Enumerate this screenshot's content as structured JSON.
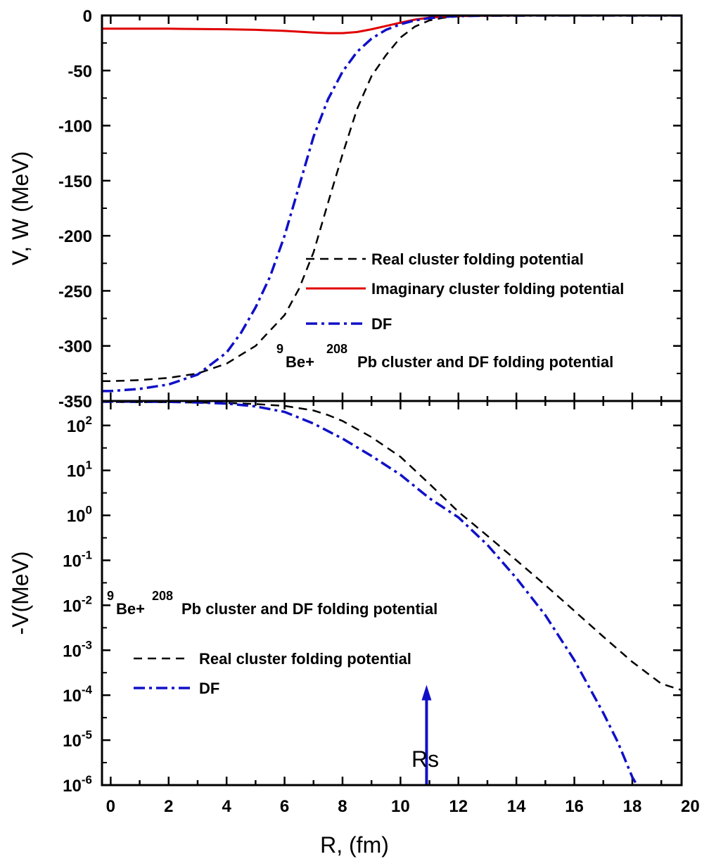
{
  "chart_data": [
    {
      "type": "line",
      "panel": "top",
      "ylabel": "V, W (MeV)",
      "xlim": [
        -0.3,
        19.7
      ],
      "ylim": [
        -350,
        0
      ],
      "yticks": [
        0,
        -50,
        -100,
        -150,
        -200,
        -250,
        -300,
        -350
      ],
      "ytick_labels": [
        "0",
        "-50",
        "-100",
        "-150",
        "-200",
        "-250",
        "-300",
        "-350"
      ],
      "annotation": {
        "pre": "Be+",
        "sup1": "9",
        "sup2": "208",
        "post": "Pb cluster and DF folding potential"
      },
      "series": [
        {
          "name": "Real cluster folding potential",
          "color": "#000000",
          "style": "dash",
          "x": [
            -0.3,
            0,
            1,
            2,
            3,
            4,
            5,
            6,
            6.5,
            7,
            7.5,
            8,
            8.5,
            9,
            9.5,
            10,
            10.5,
            11,
            11.5,
            12,
            13,
            14,
            15,
            17,
            19.7
          ],
          "y": [
            -332,
            -332,
            -331,
            -329,
            -325,
            -316,
            -300,
            -272,
            -248,
            -215,
            -170,
            -126,
            -85,
            -55,
            -36,
            -20,
            -10,
            -4.5,
            -2,
            -0.8,
            -0.2,
            -0.05,
            0,
            0,
            0
          ]
        },
        {
          "name": "Imaginary cluster folding potential",
          "color": "#e00000",
          "style": "solid",
          "x": [
            -0.3,
            0,
            2,
            4,
            5,
            6,
            7,
            7.5,
            8,
            8.5,
            9,
            9.5,
            10,
            10.5,
            11,
            11.5,
            12,
            13,
            15,
            19.7
          ],
          "y": [
            -12,
            -12,
            -12,
            -12.5,
            -13,
            -14,
            -15.5,
            -16,
            -16,
            -15,
            -12.5,
            -9.5,
            -6.5,
            -3.8,
            -2,
            -0.9,
            -0.4,
            -0.1,
            0,
            0
          ]
        },
        {
          "name": "DF",
          "color": "#1010c8",
          "style": "dashdot",
          "x": [
            -0.3,
            0,
            1,
            2,
            3,
            4,
            4.5,
            5,
            5.5,
            6,
            6.5,
            7,
            7.5,
            8,
            8.5,
            9,
            9.5,
            10,
            10.5,
            11,
            11.5,
            12,
            13,
            14,
            15,
            19.7
          ],
          "y": [
            -341,
            -341,
            -339,
            -335,
            -326,
            -306,
            -288,
            -265,
            -237,
            -200,
            -155,
            -110,
            -76,
            -51,
            -33,
            -21,
            -13,
            -8,
            -4.5,
            -2.4,
            -1.2,
            -0.6,
            -0.15,
            -0.04,
            0,
            0
          ]
        }
      ]
    },
    {
      "type": "line",
      "panel": "bottom",
      "xlabel": "R, (fm)",
      "ylabel": "-V(MeV)",
      "yscale": "log",
      "xlim": [
        -0.3,
        19.7
      ],
      "ylim": [
        1e-06,
        350
      ],
      "xticks": [
        0,
        2,
        4,
        6,
        8,
        10,
        12,
        14,
        16,
        18,
        20
      ],
      "xtick_labels": [
        "0",
        "2",
        "4",
        "6",
        "8",
        "10",
        "12",
        "14",
        "16",
        "18",
        "20"
      ],
      "ytick_exponents": [
        2,
        1,
        0,
        -1,
        -2,
        -3,
        -4,
        -5,
        -6
      ],
      "ytick_base": "10",
      "ytick_exp_labels": [
        "2",
        "1",
        "0",
        "-1",
        "-2",
        "-3",
        "-4",
        "-5",
        "-6"
      ],
      "annotation": {
        "pre": "Be+",
        "sup1": "9",
        "sup2": "208",
        "post": "Pb cluster and DF folding potential"
      },
      "arrow": {
        "label": "Rs",
        "x": 10.9,
        "y_from": 1e-06,
        "y_to": 0.00017
      },
      "series": [
        {
          "name": "Real  cluster folding potential",
          "color": "#000000",
          "style": "dash",
          "x": [
            -0.3,
            0,
            2,
            4,
            5,
            6,
            7,
            7.5,
            8,
            9,
            10,
            11,
            12,
            13,
            14,
            15,
            16,
            17,
            18,
            19,
            19.7
          ],
          "y": [
            332,
            332,
            329,
            316,
            300,
            272,
            215,
            170,
            126,
            55,
            20,
            5.0,
            1.2,
            0.35,
            0.1,
            0.028,
            0.0075,
            0.002,
            0.00055,
            0.00018,
            0.00013
          ]
        },
        {
          "name": "DF",
          "color": "#1010c8",
          "style": "dashdot",
          "x": [
            -0.3,
            0,
            2,
            3,
            4,
            5,
            6,
            7,
            8,
            9,
            10,
            11,
            12,
            13,
            14,
            15,
            16,
            17,
            17.5,
            18,
            18.2
          ],
          "y": [
            341,
            341,
            335,
            326,
            306,
            265,
            200,
            110,
            51,
            21,
            8,
            2.4,
            0.9,
            0.22,
            0.04,
            0.006,
            0.0006,
            4e-05,
            9e-06,
            1.5e-06,
            9e-07
          ]
        }
      ]
    }
  ]
}
